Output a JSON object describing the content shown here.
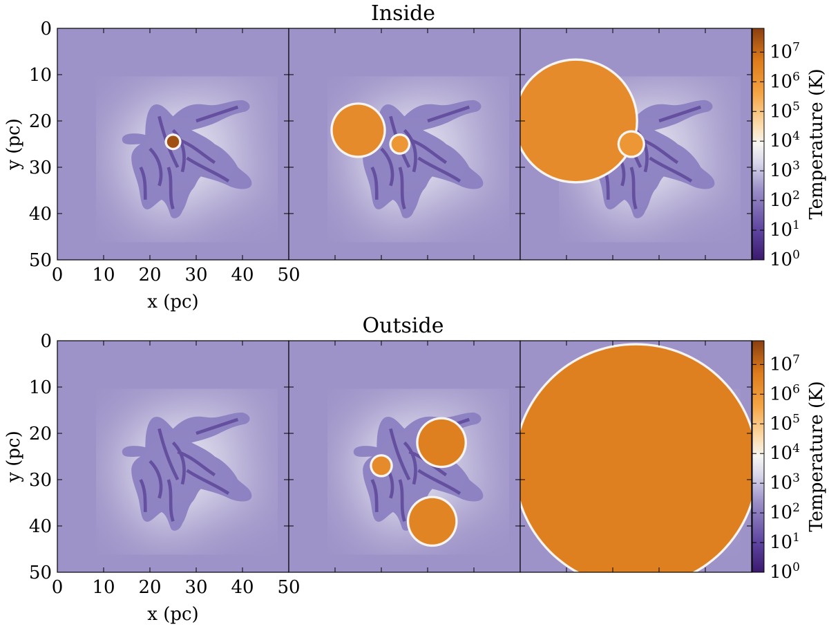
{
  "chart_data": [
    {
      "type": "heatmap",
      "title": "Inside",
      "panels": 3,
      "xlabel": "x (pc)",
      "ylabel": "y (pc)",
      "xlim": [
        0,
        50
      ],
      "ylim": [
        50,
        0
      ],
      "x_ticks": [
        0,
        10,
        20,
        30,
        40,
        50
      ],
      "y_ticks": [
        0,
        10,
        20,
        30,
        40,
        50
      ],
      "colorbar": {
        "label": "Temperature (K)",
        "scale": "log",
        "range_exponents": [
          0,
          7.8
        ],
        "tick_exponents": [
          0,
          1,
          2,
          3,
          4,
          5,
          6,
          7
        ]
      },
      "features": [
        {
          "panel": 1,
          "hot_regions": [
            {
              "cx": 25,
              "cy": 24.5,
              "r": 1.3,
              "log_temp": 7.5
            }
          ]
        },
        {
          "panel": 2,
          "hot_regions": [
            {
              "cx": 15,
              "cy": 22,
              "r": 5.5,
              "log_temp": 6.3
            },
            {
              "cx": 24,
              "cy": 25,
              "r": 1.8,
              "log_temp": 6
            }
          ]
        },
        {
          "panel": 3,
          "hot_regions": [
            {
              "cx": 12,
              "cy": 20,
              "r": 13,
              "log_temp": 6.3
            },
            {
              "cx": 24,
              "cy": 25,
              "r": 2.5,
              "log_temp": 6
            }
          ]
        }
      ]
    },
    {
      "type": "heatmap",
      "title": "Outside",
      "panels": 3,
      "xlabel": "x (pc)",
      "ylabel": "y (pc)",
      "xlim": [
        0,
        50
      ],
      "ylim": [
        50,
        0
      ],
      "x_ticks": [
        0,
        10,
        20,
        30,
        40,
        50
      ],
      "y_ticks": [
        0,
        10,
        20,
        30,
        40,
        50
      ],
      "colorbar": {
        "label": "Temperature (K)",
        "scale": "log",
        "range_exponents": [
          0,
          7.8
        ],
        "tick_exponents": [
          0,
          1,
          2,
          3,
          4,
          5,
          6,
          7
        ]
      },
      "features": [
        {
          "panel": 1,
          "hot_regions": []
        },
        {
          "panel": 2,
          "hot_regions": [
            {
              "cx": 33,
              "cy": 22,
              "r": 5,
              "log_temp": 6.6
            },
            {
              "cx": 31,
              "cy": 39,
              "r": 5,
              "log_temp": 6.5
            },
            {
              "cx": 20,
              "cy": 27,
              "r": 2,
              "log_temp": 6.3
            }
          ]
        },
        {
          "panel": 3,
          "hot_regions": [
            {
              "cx": 25,
              "cy": 27,
              "r": 26,
              "log_temp": 6.6
            }
          ]
        }
      ]
    }
  ]
}
